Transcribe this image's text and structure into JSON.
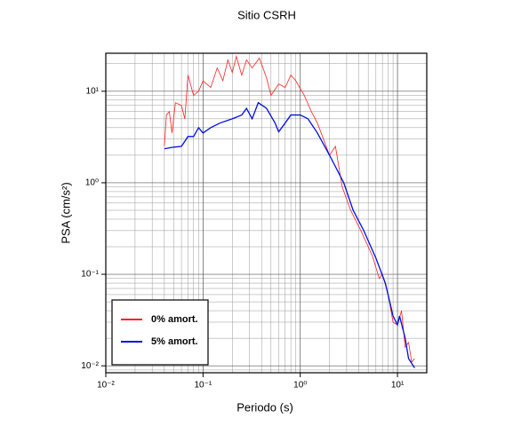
{
  "chart_data": {
    "type": "line",
    "title": "Sitio CSRH",
    "x_label": "Periodo (s)",
    "y_label": "PSA (cm/s²)",
    "log_x": true,
    "log_y": true,
    "grid": true,
    "legend": "lower left",
    "xlim": [
      0.01,
      20
    ],
    "ylim": [
      0.0084,
      26
    ],
    "xticks": [
      {
        "value": 0.01,
        "label": "10⁻²"
      },
      {
        "value": 0.1,
        "label": "10⁻¹"
      },
      {
        "value": 1,
        "label": "10⁰"
      },
      {
        "value": 10,
        "label": "10¹"
      }
    ],
    "yticks": [
      {
        "value": 0.01,
        "label": "10⁻²"
      },
      {
        "value": 0.1,
        "label": "10⁻¹"
      },
      {
        "value": 1,
        "label": "10⁰"
      },
      {
        "value": 10,
        "label": "10¹"
      }
    ],
    "series": [
      {
        "name": "0% amort.",
        "color": "#ff2020",
        "x": [
          0.04,
          0.042,
          0.045,
          0.048,
          0.052,
          0.06,
          0.065,
          0.07,
          0.08,
          0.09,
          0.1,
          0.12,
          0.14,
          0.16,
          0.18,
          0.2,
          0.22,
          0.25,
          0.28,
          0.32,
          0.38,
          0.45,
          0.5,
          0.6,
          0.7,
          0.8,
          0.9,
          1.1,
          1.3,
          1.5,
          2,
          2.3,
          2.7,
          3.3,
          4.2,
          5.5,
          6.5,
          7,
          8,
          9,
          10,
          11,
          12,
          13,
          14,
          15
        ],
        "values": [
          2.5,
          5.5,
          6,
          3.5,
          7.5,
          7,
          5,
          15,
          9,
          10,
          13,
          11,
          18,
          13,
          22,
          16,
          24,
          15,
          22,
          18,
          23,
          14,
          9,
          12,
          11,
          15,
          13,
          9,
          6,
          4.5,
          2,
          2.5,
          0.9,
          0.5,
          0.3,
          0.16,
          0.09,
          0.1,
          0.06,
          0.03,
          0.028,
          0.04,
          0.016,
          0.018,
          0.011,
          0.012
        ]
      },
      {
        "name": "5% amort.",
        "color": "#0010e0",
        "x": [
          0.04,
          0.05,
          0.06,
          0.07,
          0.08,
          0.09,
          0.1,
          0.12,
          0.15,
          0.2,
          0.25,
          0.28,
          0.32,
          0.37,
          0.45,
          0.55,
          0.6,
          0.7,
          0.8,
          1.0,
          1.2,
          1.5,
          2,
          2.8,
          3.5,
          4.5,
          6,
          7.5,
          8,
          9,
          10,
          10.5,
          12,
          13,
          15
        ],
        "values": [
          2.35,
          2.45,
          2.5,
          3.2,
          3.2,
          4,
          3.5,
          4,
          4.5,
          5,
          5.5,
          6.5,
          5,
          7.5,
          6.5,
          4.5,
          3.6,
          4.5,
          5.5,
          5.5,
          5,
          3.5,
          2,
          1,
          0.5,
          0.3,
          0.15,
          0.08,
          0.06,
          0.035,
          0.028,
          0.035,
          0.02,
          0.012,
          0.0095
        ]
      }
    ]
  }
}
